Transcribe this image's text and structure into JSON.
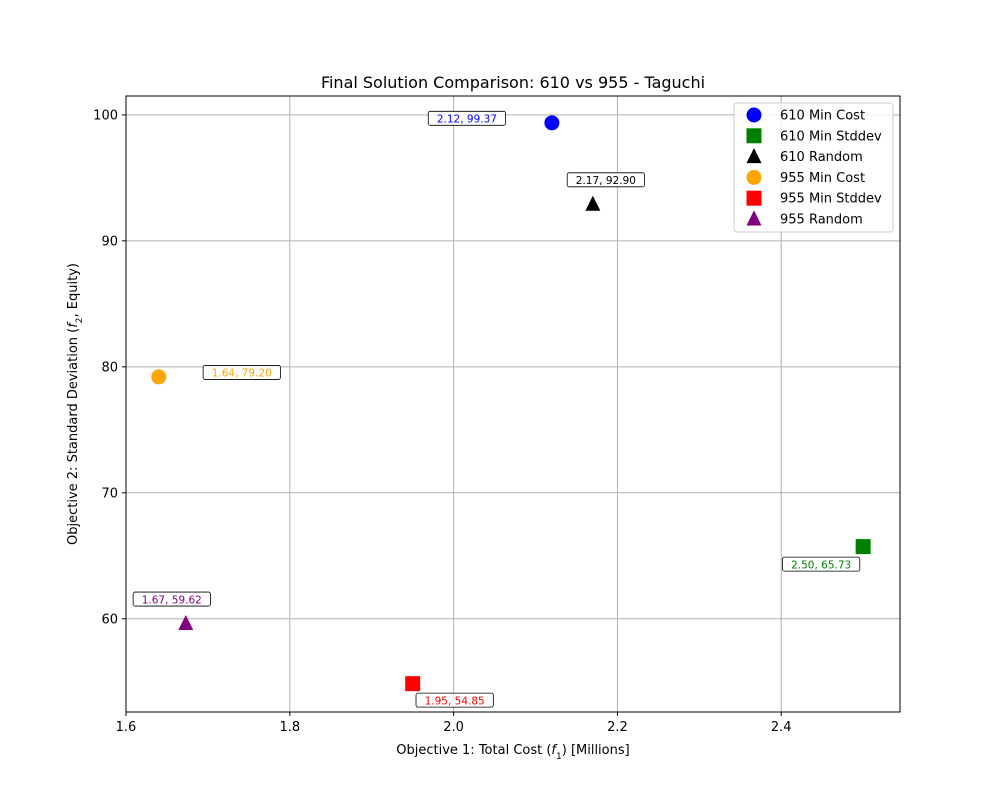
{
  "chart_data": {
    "type": "scatter",
    "title": "Final Solution Comparison: 610 vs 955 - Taguchi",
    "xlabel_prefix": "Objective 1: Total Cost (",
    "xlabel_var": "f",
    "xlabel_sub": "1",
    "xlabel_suffix": ") [Millions]",
    "ylabel_prefix": "Objective 2: Standard Deviation (",
    "ylabel_var": "f",
    "ylabel_sub": "2",
    "ylabel_suffix": ", Equity)",
    "xlim": [
      1.6,
      2.545
    ],
    "ylim": [
      52.6,
      101.5
    ],
    "xticks": [
      1.6,
      1.8,
      2.0,
      2.2,
      2.4
    ],
    "xtick_labels": [
      "1.6",
      "1.8",
      "2.0",
      "2.2",
      "2.4"
    ],
    "yticks": [
      60,
      70,
      80,
      90,
      100
    ],
    "ytick_labels": [
      "60",
      "70",
      "80",
      "90",
      "100"
    ],
    "grid": true,
    "legend_position": "top-right",
    "series": [
      {
        "name": "610 Min Cost",
        "marker": "circle",
        "color": "#0000ff",
        "x": 2.12,
        "y": 99.37,
        "label": "2.12, 99.37",
        "label_dx": -85,
        "label_dy": -4
      },
      {
        "name": "610 Min Stddev",
        "marker": "square",
        "color": "#008000",
        "x": 2.5,
        "y": 65.73,
        "label": "2.50, 65.73",
        "label_dx": -42,
        "label_dy": 18
      },
      {
        "name": "610 Random",
        "marker": "triangle",
        "color": "#000000",
        "x": 2.17,
        "y": 92.9,
        "label": "2.17, 92.90",
        "label_dx": 13,
        "label_dy": -24
      },
      {
        "name": "955 Min Cost",
        "marker": "circle",
        "color": "#ffa500",
        "x": 1.64,
        "y": 79.2,
        "label": "1.64, 79.20",
        "label_dx": 83,
        "label_dy": -4
      },
      {
        "name": "955 Min Stddev",
        "marker": "square",
        "color": "#ff0000",
        "x": 1.95,
        "y": 54.85,
        "label": "1.95, 54.85",
        "label_dx": 42,
        "label_dy": 17
      },
      {
        "name": "955 Random",
        "marker": "triangle",
        "color": "#800080",
        "x": 1.673,
        "y": 59.62,
        "label": "1.67, 59.62",
        "label_dx": -14,
        "label_dy": -24
      }
    ]
  }
}
